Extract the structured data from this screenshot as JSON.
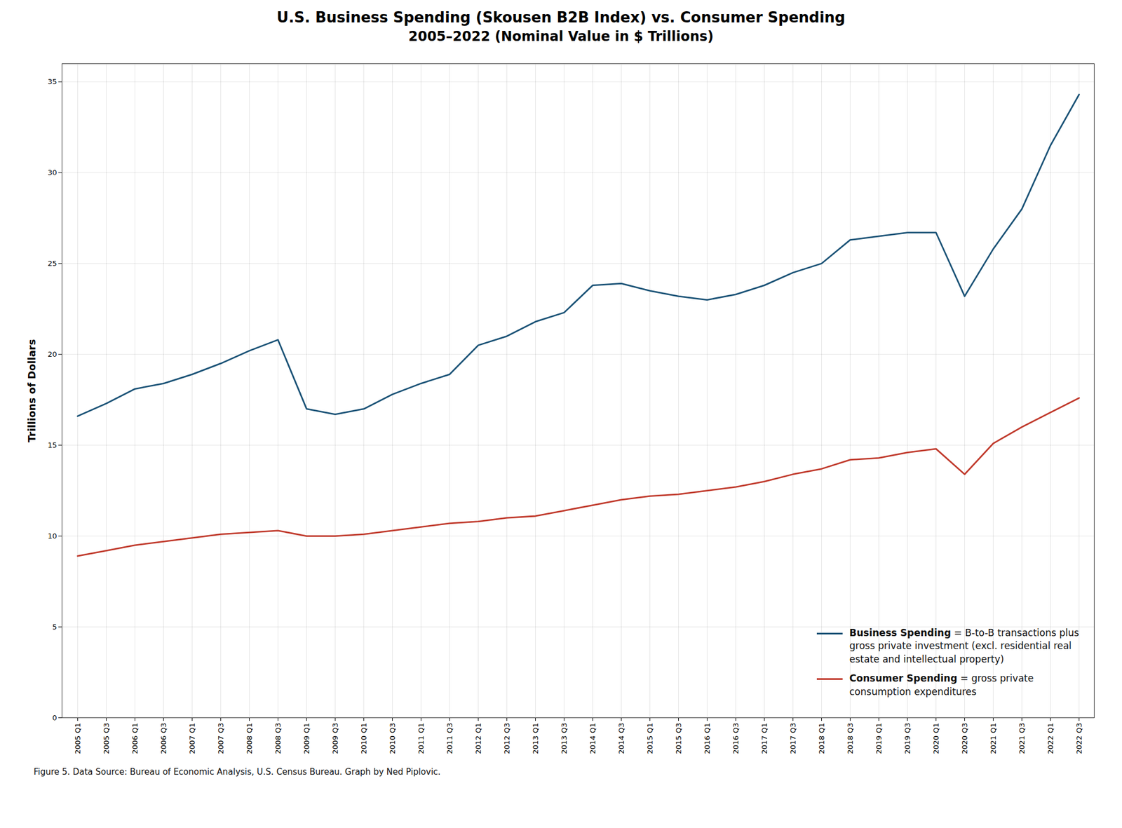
{
  "chart_data": {
    "type": "line",
    "title": "U.S. Business Spending (Skousen B2B Index) vs. Consumer Spending",
    "subtitle": "2005–2022 (Nominal Value in $ Trillions)",
    "caption": "Figure 5. Data Source: Bureau of Economic Analysis, U.S. Census Bureau. Graph by Ned Piplovic.",
    "ylabel": "Trillions of Dollars",
    "categories": [
      "2005 Q1",
      "2005 Q3",
      "2006 Q1",
      "2006 Q3",
      "2007 Q1",
      "2007 Q3",
      "2008 Q1",
      "2008 Q3",
      "2009 Q1",
      "2009 Q3",
      "2010 Q1",
      "2010 Q3",
      "2011 Q1",
      "2011 Q3",
      "2012 Q1",
      "2012 Q3",
      "2013 Q1",
      "2013 Q3",
      "2014 Q1",
      "2014 Q3",
      "2015 Q1",
      "2015 Q3",
      "2016 Q1",
      "2016 Q3",
      "2017 Q1",
      "2017 Q3",
      "2018 Q1",
      "2018 Q3",
      "2019 Q1",
      "2019 Q3",
      "2020 Q1",
      "2020 Q3",
      "2021 Q1",
      "2021 Q3",
      "2022 Q1",
      "2022 Q3"
    ],
    "series": [
      {
        "name": "Business Spending = B-to-B transactions plus gross private investment (excl. residential real estate and intellectual property)",
        "color": "#1a5276",
        "values": [
          16.6,
          17.3,
          18.1,
          18.4,
          18.9,
          19.5,
          20.2,
          20.8,
          17.0,
          16.7,
          17.0,
          17.8,
          18.4,
          18.9,
          20.5,
          21.0,
          21.8,
          22.3,
          23.8,
          23.9,
          23.5,
          23.2,
          23.0,
          23.3,
          23.8,
          24.5,
          25.0,
          26.3,
          26.5,
          26.7,
          26.7,
          23.2,
          25.8,
          28.0,
          31.5,
          34.3
        ]
      },
      {
        "name": "Consumer Spending = gross private consumption expenditures",
        "color": "#c0392b",
        "values": [
          8.9,
          9.2,
          9.5,
          9.7,
          9.9,
          10.1,
          10.2,
          10.3,
          10.0,
          10.0,
          10.1,
          10.3,
          10.5,
          10.7,
          10.8,
          11.0,
          11.1,
          11.4,
          11.7,
          12.0,
          12.2,
          12.3,
          12.5,
          12.7,
          13.0,
          13.4,
          13.7,
          14.2,
          14.3,
          14.6,
          14.8,
          13.4,
          15.1,
          16.0,
          16.8,
          17.6
        ]
      }
    ],
    "ylim": [
      0,
      36
    ],
    "yticks": [
      0,
      5,
      10,
      15,
      20,
      25,
      30,
      35
    ],
    "grid": true,
    "legend": "lower right"
  }
}
